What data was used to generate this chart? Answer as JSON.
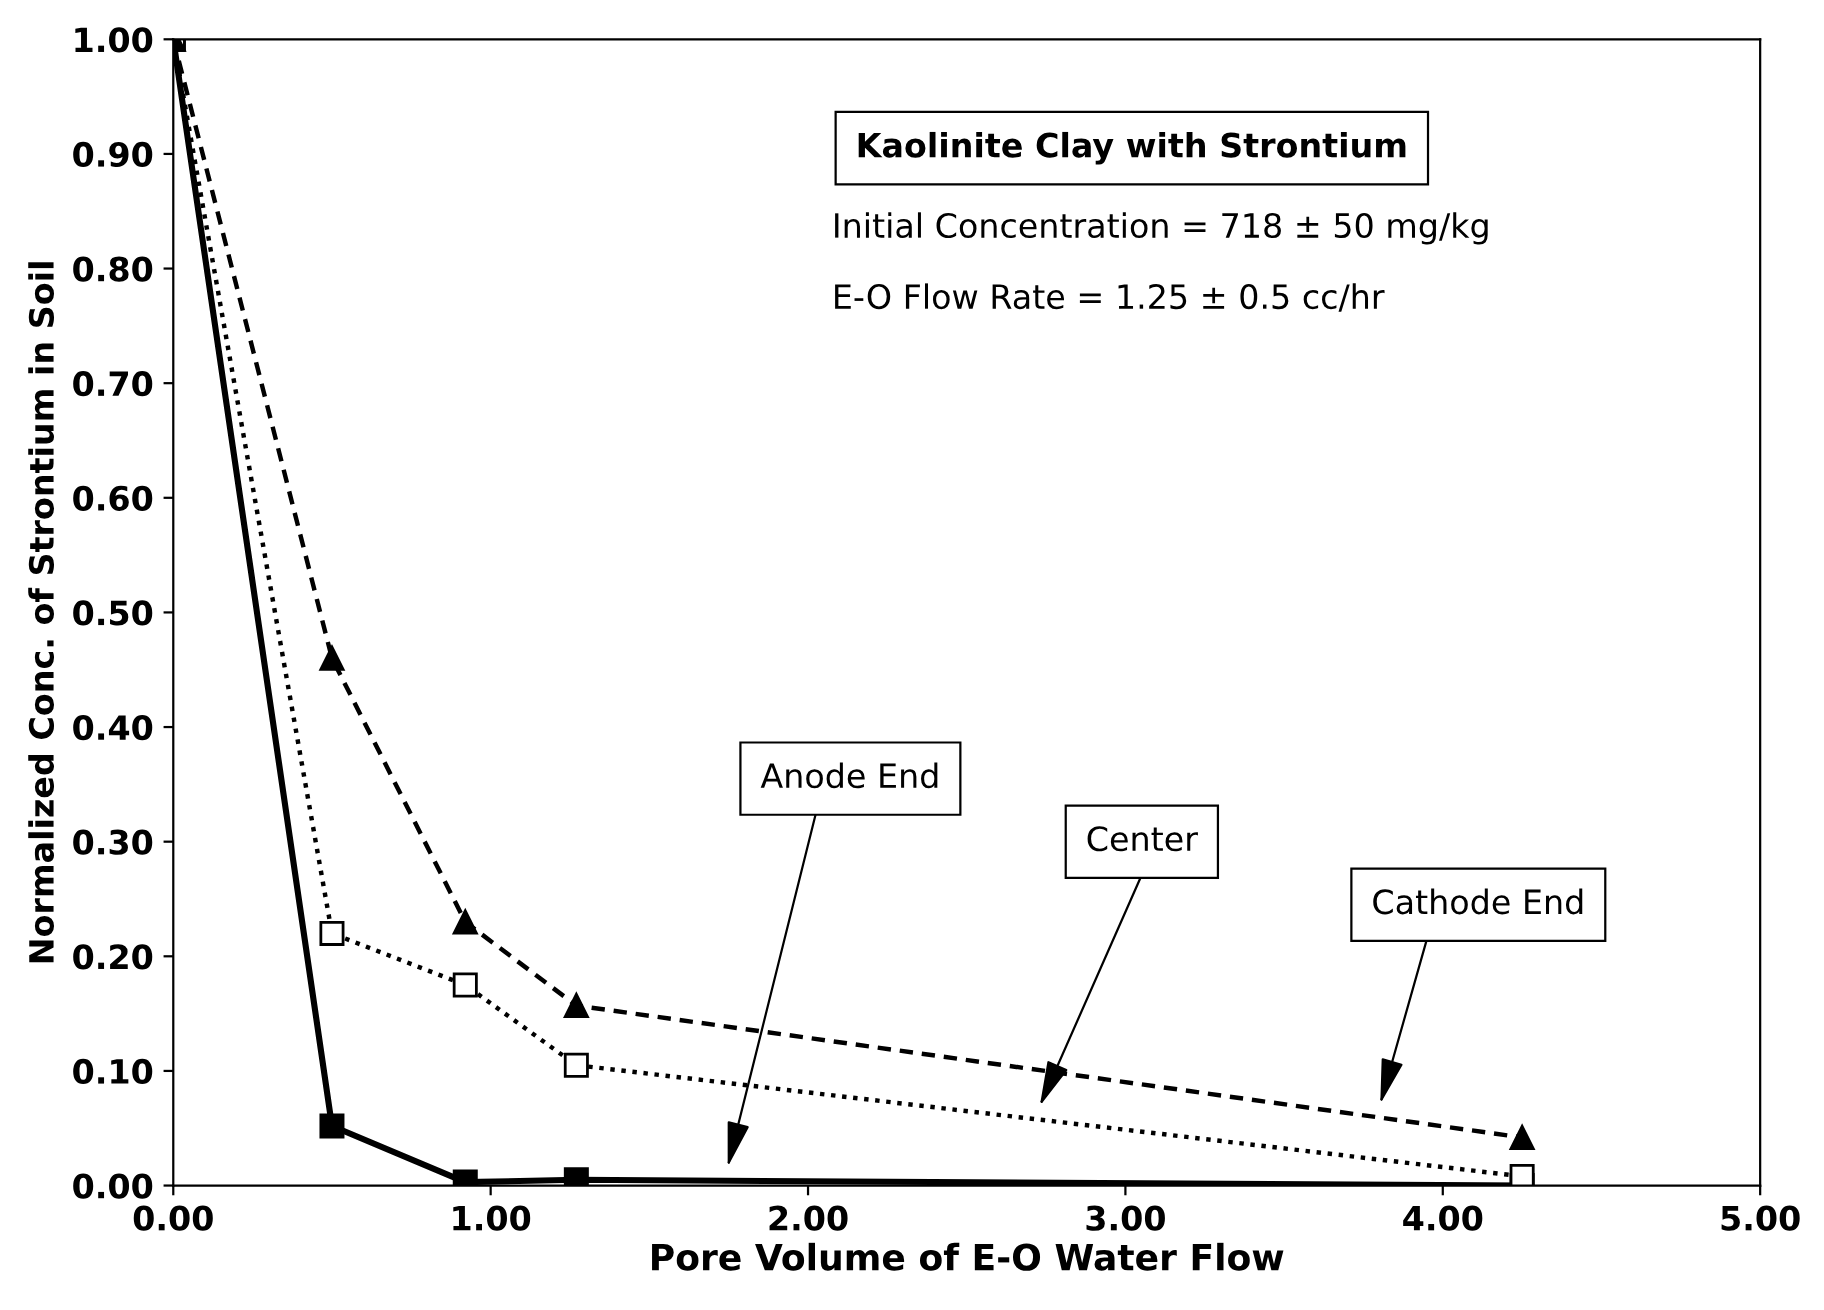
{
  "chart_data": {
    "type": "line",
    "title": "Kaolinite Clay with Strontium",
    "xlabel": "Pore Volume of E-O Water Flow",
    "ylabel": "Normalized Conc. of Strontium in Soil",
    "annotations": [
      "Initial Concentration = 718 ± 50 mg/kg",
      "E-O Flow Rate = 1.25 ± 0.5 cc/hr"
    ],
    "x": [
      0,
      0.5,
      0.92,
      1.27,
      4.25
    ],
    "series": [
      {
        "name": "Anode End",
        "color": "#000000",
        "marker": "square",
        "line_style": "solid",
        "values": [
          1.0,
          0.052,
          0.003,
          0.005,
          0.0
        ]
      },
      {
        "name": "Center",
        "color": "#000000",
        "marker": "square",
        "line_style": "dotted",
        "values": [
          1.0,
          0.22,
          0.175,
          0.105,
          0.008
        ]
      },
      {
        "name": "Cathode End",
        "color": "#000000",
        "marker": "triangle",
        "line_style": "dashed",
        "values": [
          1.0,
          0.46,
          0.23,
          0.157,
          0.042
        ]
      }
    ],
    "xlim": [
      0,
      5
    ],
    "xticks": [
      {
        "value": 0,
        "label": "0.00"
      },
      {
        "value": 1,
        "label": "1.00"
      },
      {
        "value": 2,
        "label": "2.00"
      },
      {
        "value": 3,
        "label": "3.00"
      },
      {
        "value": 4,
        "label": "4.00"
      },
      {
        "value": 5,
        "label": "5.00"
      }
    ],
    "ylim": [
      0,
      1
    ],
    "yticks": [
      {
        "value": 0,
        "label": "0.00"
      },
      {
        "value": 0.1,
        "label": "0.10"
      },
      {
        "value": 0.2,
        "label": "0.20"
      },
      {
        "value": 0.3,
        "label": "0.30"
      },
      {
        "value": 0.4,
        "label": "0.40"
      },
      {
        "value": 0.5,
        "label": "0.50"
      },
      {
        "value": 0.6,
        "label": "0.60"
      },
      {
        "value": 0.7,
        "label": "0.70"
      },
      {
        "value": 0.8,
        "label": "0.80"
      },
      {
        "value": 0.9,
        "label": "0.90"
      },
      {
        "value": 1.0,
        "label": "1.00"
      }
    ],
    "grid": false,
    "legend": false
  }
}
